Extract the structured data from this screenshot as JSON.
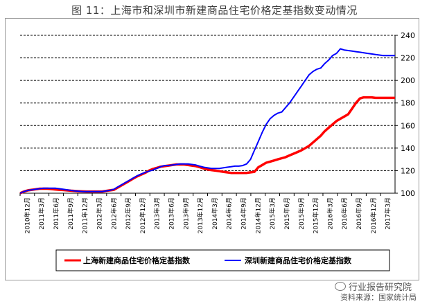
{
  "figure": {
    "title": "图 11：上海市和深圳市新建商品住宅价格定基指数变动情况",
    "watermark": "行业报告研究院",
    "source": "资料来源：国家统计局"
  },
  "colors": {
    "shanghai": "#ff0000",
    "shenzhen": "#0000ff",
    "grid": "#000000"
  },
  "chart_data": {
    "type": "line",
    "title": "图 11：上海市和深圳市新建商品住宅价格定基指数变动情况",
    "xlabel": "",
    "ylabel": "",
    "ylim": [
      100,
      240
    ],
    "y_axis_position": "right",
    "y_ticks": [
      100,
      120,
      140,
      160,
      180,
      200,
      220,
      240
    ],
    "grid": "horizontal-dashed",
    "legend_position": "bottom",
    "x_tick_labels": [
      "2010年12月",
      "2011年3月",
      "2011年6月",
      "2011年9月",
      "2011年12月",
      "2012年3月",
      "2012年6月",
      "2012年9月",
      "2012年12月",
      "2013年3月",
      "2013年6月",
      "2013年9月",
      "2013年12月",
      "2014年3月",
      "2014年6月",
      "2014年9月",
      "2014年12月",
      "2015年3月",
      "2015年6月",
      "2015年9月",
      "2015年12月",
      "2016年3月",
      "2016年6月",
      "2016年9月",
      "2016年12月",
      "2017年3月"
    ],
    "x_start": "2010-12",
    "x_end": "2017-05",
    "series": [
      {
        "name": "上海新建商品住宅价格定基指数",
        "color": "#ff0000",
        "values": [
          100,
          101.5,
          102.5,
          103,
          103.5,
          104,
          104,
          104,
          103.7,
          103.3,
          103,
          102.8,
          102.5,
          102.2,
          102,
          101.8,
          101.6,
          101.5,
          101.5,
          101.5,
          101.5,
          101.5,
          102,
          102.5,
          103,
          105,
          107,
          109,
          111,
          113,
          115,
          116.5,
          118,
          120,
          121.5,
          122.5,
          123.5,
          124,
          124.5,
          125,
          125.5,
          125.5,
          125.5,
          125,
          124.5,
          124,
          123,
          122,
          121,
          120.5,
          120,
          119.5,
          119,
          118.5,
          118,
          118,
          118,
          118,
          118,
          118.5,
          119,
          123,
          125,
          127,
          128,
          129,
          130,
          131,
          132,
          133.5,
          135,
          136.5,
          138,
          140,
          142,
          145,
          148,
          151,
          155,
          158,
          161,
          164,
          166,
          168,
          170,
          175,
          180,
          184,
          185,
          185,
          185,
          184.5,
          184.5,
          184.5,
          184.5,
          184.5,
          184.5
        ]
      },
      {
        "name": "深圳新建商品住宅价格定基指数",
        "color": "#0000ff",
        "values": [
          100,
          101.5,
          102.5,
          103,
          103.5,
          104,
          104.5,
          104.5,
          104.5,
          104.5,
          104,
          103.5,
          103,
          102.5,
          102,
          101.8,
          101.5,
          101.5,
          101.5,
          101.5,
          101.5,
          101.5,
          102,
          102.5,
          103.5,
          105.5,
          107.5,
          109.5,
          111.5,
          113.5,
          115.5,
          117,
          118.5,
          119.5,
          120.5,
          122,
          123.5,
          124.5,
          124.5,
          125,
          125.5,
          126,
          126,
          126,
          125.5,
          125,
          124,
          123,
          122.5,
          122,
          122,
          122,
          122.5,
          123,
          123.5,
          124,
          124,
          124.5,
          126,
          130,
          138,
          146,
          154,
          161,
          166,
          169,
          171,
          172,
          176,
          180,
          185,
          190,
          195,
          200,
          205,
          208,
          210,
          211,
          215,
          218,
          222,
          224,
          228,
          227,
          226.5,
          226,
          225.5,
          225,
          224.5,
          224,
          223.5,
          223,
          222.5,
          222,
          222,
          222,
          222
        ]
      }
    ]
  },
  "legend": {
    "items": [
      {
        "label": "上海新建商品住宅价格定基指数",
        "color": "#ff0000"
      },
      {
        "label": "深圳新建商品住宅价格定基指数",
        "color": "#0000ff"
      }
    ]
  }
}
